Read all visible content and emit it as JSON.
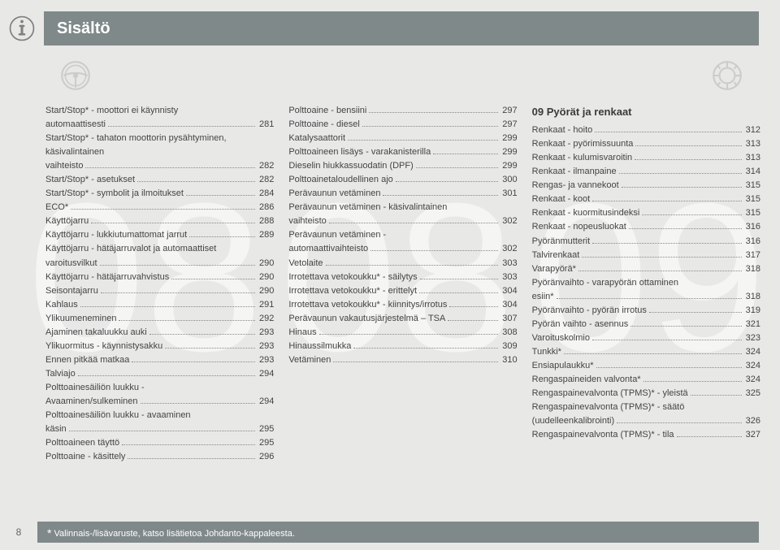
{
  "page_number": "8",
  "header_title": "Sisältö",
  "footnote": "Valinnais-/lisävaruste, katso lisätietoa Johdanto-kappaleesta.",
  "footnote_marker": "*",
  "watermark": {
    "a": "08",
    "b": "08",
    "c": "09"
  },
  "colors": {
    "page_bg": "#e8e8e7",
    "bar_bg": "#808989",
    "bar_text": "#ffffff",
    "body_text": "#444444",
    "watermark": "rgba(255,255,255,0.55)",
    "icon_stroke": "#808080"
  },
  "font_sizes": {
    "header": 20,
    "section": 13,
    "body": 11
  },
  "icons": {
    "sidebar": "info-circle",
    "header_left": "steering-wheel",
    "header_right": "tire"
  },
  "columns": [
    {
      "entries": [
        {
          "label": "Start/Stop* - moottori ei käynnisty automaattisesti",
          "page": "281",
          "wrap": true
        },
        {
          "label": "Start/Stop* - tahaton moottorin pysähtyminen, käsivalintainen vaihteisto",
          "page": "282",
          "wrap": true
        },
        {
          "label": "Start/Stop* - asetukset",
          "page": "282"
        },
        {
          "label": "Start/Stop* - symbolit ja ilmoitukset",
          "page": "284"
        },
        {
          "label": "ECO*",
          "page": "286"
        },
        {
          "label": "Käyttöjarru",
          "page": "288"
        },
        {
          "label": "Käyttöjarru - lukkiutumattomat jarrut",
          "page": "289"
        },
        {
          "label": "Käyttöjarru - hätäjarruvalot ja automaattiset varoitusvilkut",
          "page": "290",
          "wrap": true
        },
        {
          "label": "Käyttöjarru - hätäjarruvahvistus",
          "page": "290"
        },
        {
          "label": "Seisontajarru",
          "page": "290"
        },
        {
          "label": "Kahlaus",
          "page": "291"
        },
        {
          "label": "Ylikuumeneminen",
          "page": "292"
        },
        {
          "label": "Ajaminen takaluukku auki",
          "page": "293"
        },
        {
          "label": "Ylikuormitus - käynnistysakku",
          "page": "293"
        },
        {
          "label": "Ennen pitkää matkaa",
          "page": "293"
        },
        {
          "label": "Talviajo",
          "page": "294"
        },
        {
          "label": "Polttoainesäiliön luukku - Avaaminen/sulkeminen",
          "page": "294",
          "wrap": true
        },
        {
          "label": "Polttoainesäiliön luukku - avaaminen käsin",
          "page": "295",
          "wrap": true
        },
        {
          "label": "Polttoaineen täyttö",
          "page": "295"
        },
        {
          "label": "Polttoaine - käsittely",
          "page": "296"
        }
      ]
    },
    {
      "entries": [
        {
          "label": "Polttoaine - bensiini",
          "page": "297"
        },
        {
          "label": "Polttoaine - diesel",
          "page": "297"
        },
        {
          "label": "Katalysaattorit",
          "page": "299"
        },
        {
          "label": "Polttoaineen lisäys - varakanisterilla",
          "page": "299"
        },
        {
          "label": "Dieselin hiukkassuodatin (DPF)",
          "page": "299"
        },
        {
          "label": "Polttoainetaloudellinen ajo",
          "page": "300"
        },
        {
          "label": "Perävaunun vetäminen",
          "page": "301"
        },
        {
          "label": "Perävaunun vetäminen - käsivalintainen vaihteisto",
          "page": "302",
          "wrap": true
        },
        {
          "label": "Perävaunun vetäminen - automaattivaihteisto",
          "page": "302",
          "wrap": true
        },
        {
          "label": "Vetolaite",
          "page": "303"
        },
        {
          "label": "Irrotettava vetokoukku* - säilytys",
          "page": "303"
        },
        {
          "label": "Irrotettava vetokoukku* - erittelyt",
          "page": "304"
        },
        {
          "label": "Irrotettava vetokoukku* - kiinnitys/irrotus",
          "page": "304"
        },
        {
          "label": "Perävaunun vakautusjärjestelmä – TSA",
          "page": "307"
        },
        {
          "label": "Hinaus",
          "page": "308"
        },
        {
          "label": "Hinaussilmukka",
          "page": "309"
        },
        {
          "label": "Vetäminen",
          "page": "310"
        }
      ]
    },
    {
      "section_title": "09 Pyörät ja renkaat",
      "entries": [
        {
          "label": "Renkaat - hoito",
          "page": "312"
        },
        {
          "label": "Renkaat - pyörimissuunta",
          "page": "313"
        },
        {
          "label": "Renkaat - kulumisvaroitin",
          "page": "313"
        },
        {
          "label": "Renkaat - ilmanpaine",
          "page": "314"
        },
        {
          "label": "Rengas- ja vannekoot",
          "page": "315"
        },
        {
          "label": "Renkaat - koot",
          "page": "315"
        },
        {
          "label": "Renkaat - kuormitusindeksi",
          "page": "315"
        },
        {
          "label": "Renkaat - nopeusluokat",
          "page": "316"
        },
        {
          "label": "Pyöränmutterit",
          "page": "316"
        },
        {
          "label": "Talvirenkaat",
          "page": "317"
        },
        {
          "label": "Varapyörä*",
          "page": "318"
        },
        {
          "label": "Pyöränvaihto - varapyörän ottaminen esiin*",
          "page": "318",
          "wrap": true
        },
        {
          "label": "Pyöränvaihto - pyörän irrotus",
          "page": "319"
        },
        {
          "label": "Pyörän vaihto - asennus",
          "page": "321"
        },
        {
          "label": "Varoituskolmio",
          "page": "323"
        },
        {
          "label": "Tunkki*",
          "page": "324"
        },
        {
          "label": "Ensiapulaukku*",
          "page": "324"
        },
        {
          "label": "Rengaspaineiden valvonta*",
          "page": "324"
        },
        {
          "label": "Rengaspainevalvonta (TPMS)* - yleistä",
          "page": "325"
        },
        {
          "label": "Rengaspainevalvonta (TPMS)* - säätö (uudelleenkalibrointi)",
          "page": "326",
          "wrap": true
        },
        {
          "label": "Rengaspainevalvonta (TPMS)* - tila",
          "page": "327"
        }
      ]
    }
  ]
}
